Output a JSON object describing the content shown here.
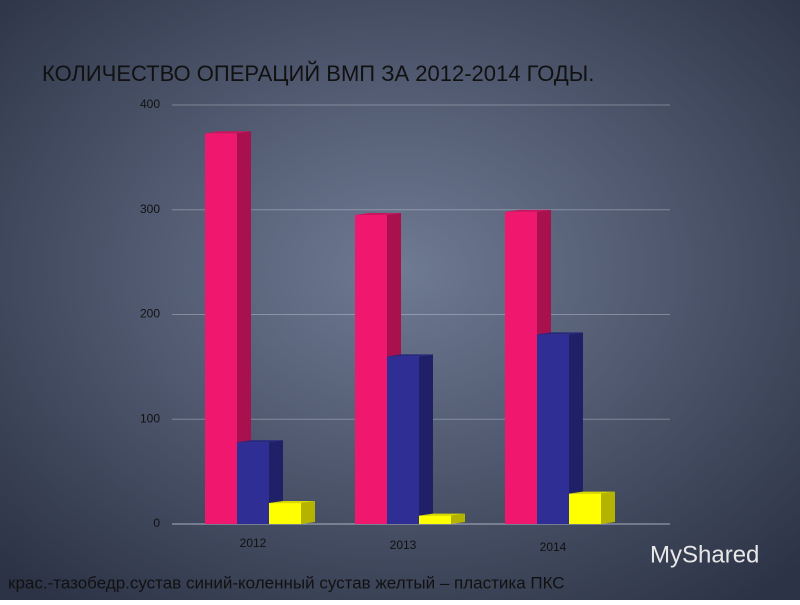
{
  "chart_data": {
    "type": "bar3d",
    "title": "КОЛИЧЕСТВО ОПЕРАЦИЙ ВМП ЗА 2012-2014 ГОДЫ.",
    "categories": [
      "2012",
      "2013",
      "2014"
    ],
    "series": [
      {
        "color": "#f0186e",
        "values": [
          373,
          295,
          298
        ]
      },
      {
        "color": "#2e2e94",
        "values": [
          78,
          160,
          181
        ]
      },
      {
        "color": "#ffff00",
        "values": [
          20,
          8,
          29
        ]
      }
    ],
    "ylim": [
      0,
      400
    ],
    "yticks": [
      0,
      100,
      200,
      300,
      400
    ],
    "grid": true,
    "caption": "крас.-тазобедр.сустав  синий-коленный сустав  желтый – пластика ПКС",
    "watermark": "MyShared"
  }
}
